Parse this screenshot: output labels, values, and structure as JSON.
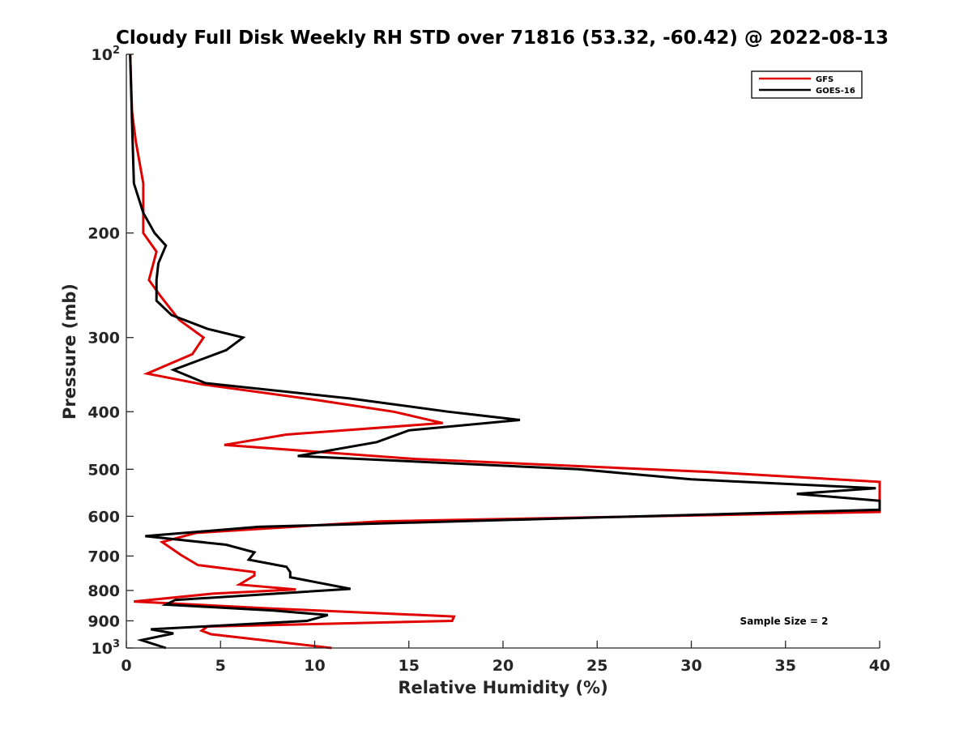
{
  "chart_data": {
    "type": "line",
    "title": "Cloudy Full Disk Weekly RH STD over 71816 (53.32, -60.42) @ 2022-08-13",
    "xlabel": "Relative Humidity (%)",
    "ylabel": "Pressure (mb)",
    "xlim": [
      0,
      40
    ],
    "ylim": [
      100,
      1000
    ],
    "y_scale": "log",
    "y_reversed": true,
    "x_ticks": [
      "0",
      "5",
      "10",
      "15",
      "20",
      "25",
      "30",
      "35",
      "40"
    ],
    "y_ticks": [
      {
        "value": 100,
        "label": "10",
        "sup": "2"
      },
      {
        "value": 200,
        "label": "200",
        "sup": ""
      },
      {
        "value": 300,
        "label": "300",
        "sup": ""
      },
      {
        "value": 400,
        "label": "400",
        "sup": ""
      },
      {
        "value": 500,
        "label": "500",
        "sup": ""
      },
      {
        "value": 600,
        "label": "600",
        "sup": ""
      },
      {
        "value": 700,
        "label": "700",
        "sup": ""
      },
      {
        "value": 800,
        "label": "800",
        "sup": ""
      },
      {
        "value": 900,
        "label": "900",
        "sup": ""
      },
      {
        "value": 1000,
        "label": "10",
        "sup": "3"
      }
    ],
    "grid": false,
    "legend_position": "top-right",
    "annotation": "Sample Size = 2",
    "series": [
      {
        "name": "GFS",
        "color": "#e00000",
        "points": [
          [
            0.2,
            100
          ],
          [
            0.3,
            125
          ],
          [
            0.5,
            140
          ],
          [
            0.9,
            165
          ],
          [
            0.9,
            190
          ],
          [
            0.9,
            200
          ],
          [
            1.6,
            215
          ],
          [
            1.2,
            240
          ],
          [
            1.8,
            255
          ],
          [
            2.8,
            280
          ],
          [
            4.1,
            300
          ],
          [
            3.5,
            320
          ],
          [
            1.1,
            345
          ],
          [
            4.1,
            360
          ],
          [
            10.3,
            383
          ],
          [
            14.2,
            400
          ],
          [
            16.8,
            418
          ],
          [
            8.5,
            437
          ],
          [
            5.2,
            455
          ],
          [
            15.1,
            480
          ],
          [
            30.8,
            505
          ],
          [
            40,
            525
          ],
          [
            40,
            590
          ],
          [
            13.4,
            612
          ],
          [
            3.7,
            640
          ],
          [
            1.9,
            663
          ],
          [
            2.9,
            697
          ],
          [
            3.8,
            725
          ],
          [
            6.8,
            745
          ],
          [
            6.8,
            755
          ],
          [
            6.2,
            775
          ],
          [
            6.0,
            782
          ],
          [
            9.0,
            797
          ],
          [
            4.6,
            810
          ],
          [
            0.4,
            835
          ],
          [
            7.7,
            858
          ],
          [
            17.4,
            885
          ],
          [
            17.3,
            900
          ],
          [
            4.3,
            920
          ],
          [
            4.0,
            935
          ],
          [
            4.5,
            948
          ],
          [
            10.9,
            1000
          ]
        ]
      },
      {
        "name": "GOES-16",
        "color": "#000000",
        "points": [
          [
            0.2,
            100
          ],
          [
            0.3,
            130
          ],
          [
            0.4,
            165
          ],
          [
            0.9,
            185
          ],
          [
            1.5,
            200
          ],
          [
            2.1,
            210
          ],
          [
            1.7,
            225
          ],
          [
            1.6,
            240
          ],
          [
            1.6,
            260
          ],
          [
            2.4,
            275
          ],
          [
            4.3,
            290
          ],
          [
            6.2,
            300
          ],
          [
            5.3,
            315
          ],
          [
            2.5,
            340
          ],
          [
            4.2,
            358
          ],
          [
            11.9,
            380
          ],
          [
            17.1,
            400
          ],
          [
            20.9,
            413
          ],
          [
            15.0,
            430
          ],
          [
            13.3,
            450
          ],
          [
            9.1,
            475
          ],
          [
            24.0,
            500
          ],
          [
            30.0,
            520
          ],
          [
            39.8,
            538
          ],
          [
            35.6,
            550
          ],
          [
            40,
            565
          ],
          [
            40,
            585
          ],
          [
            7.0,
            625
          ],
          [
            1.0,
            648
          ],
          [
            5.3,
            670
          ],
          [
            6.8,
            690
          ],
          [
            6.5,
            710
          ],
          [
            8.5,
            730
          ],
          [
            8.7,
            745
          ],
          [
            8.7,
            760
          ],
          [
            11.9,
            795
          ],
          [
            2.6,
            830
          ],
          [
            2.1,
            845
          ],
          [
            7.8,
            865
          ],
          [
            10.7,
            880
          ],
          [
            9.6,
            900
          ],
          [
            1.3,
            930
          ],
          [
            2.5,
            945
          ],
          [
            0.8,
            970
          ],
          [
            2.1,
            1000
          ]
        ]
      }
    ]
  }
}
